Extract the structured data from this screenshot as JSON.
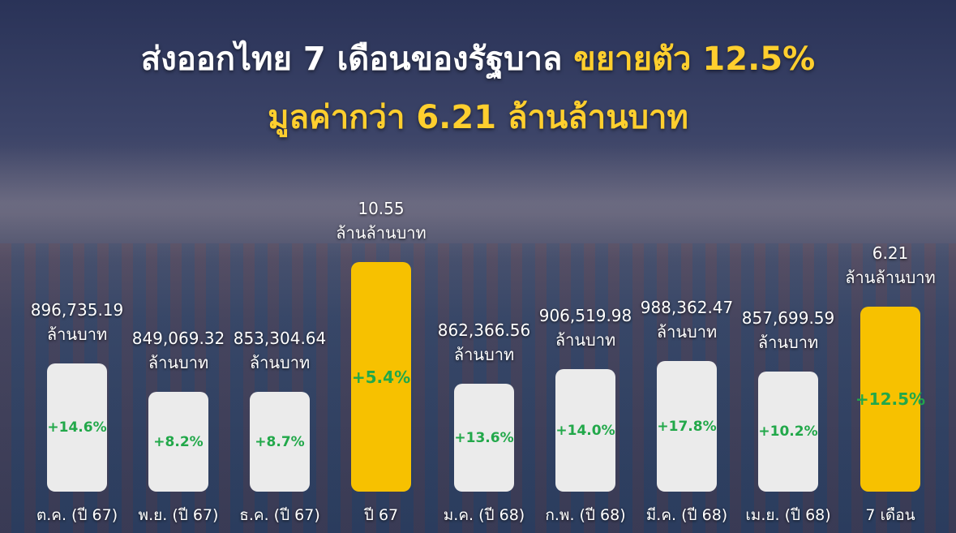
{
  "header": {
    "title_line1": "ส่งออกไทย 7 เดือนของรัฐบาล",
    "title_highlight": "ขยายตัว 12.5%",
    "title_line2": "มูลค่ากว่า 6.21 ล้านล้านบาท"
  },
  "items": [
    {
      "value": "896,735.19",
      "unit": "ล้านบาท",
      "growth": "+14.6%",
      "period": "ต.ค. (ปี 67)",
      "color": "#ebebeb"
    },
    {
      "value": "849,069.32",
      "unit": "ล้านบาท",
      "growth": "+8.2%",
      "period": "พ.ย. (ปี 67)",
      "color": "#ebebeb"
    },
    {
      "value": "853,304.64",
      "unit": "ล้านบาท",
      "growth": "+8.7%",
      "period": "ธ.ค. (ปี 67)",
      "color": "#ebebeb"
    },
    {
      "value": "10.55",
      "unit": "ล้านล้านบาท",
      "growth": "+5.4%",
      "period": "ปี 67",
      "color": "#f7c100"
    },
    {
      "value": "862,366.56",
      "unit": "ล้านบาท",
      "growth": "+13.6%",
      "period": "ม.ค. (ปี 68)",
      "color": "#ebebeb"
    },
    {
      "value": "906,519.98",
      "unit": "ล้านบาท",
      "growth": "+14.0%",
      "period": "ก.พ. (ปี 68)",
      "color": "#ebebeb"
    },
    {
      "value": "988,362.47",
      "unit": "ล้านบาท",
      "growth": "+17.8%",
      "period": "มี.ค. (ปี 68)",
      "color": "#ebebeb"
    },
    {
      "value": "857,699.59",
      "unit": "ล้านบาท",
      "growth": "+10.2%",
      "period": "เม.ย. (ปี 68)",
      "color": "#ebebeb"
    },
    {
      "value": "6.21",
      "unit": "ล้านล้านบาท",
      "growth": "+12.5%",
      "period": "7 เดือน",
      "color": "#f7c100"
    }
  ]
}
